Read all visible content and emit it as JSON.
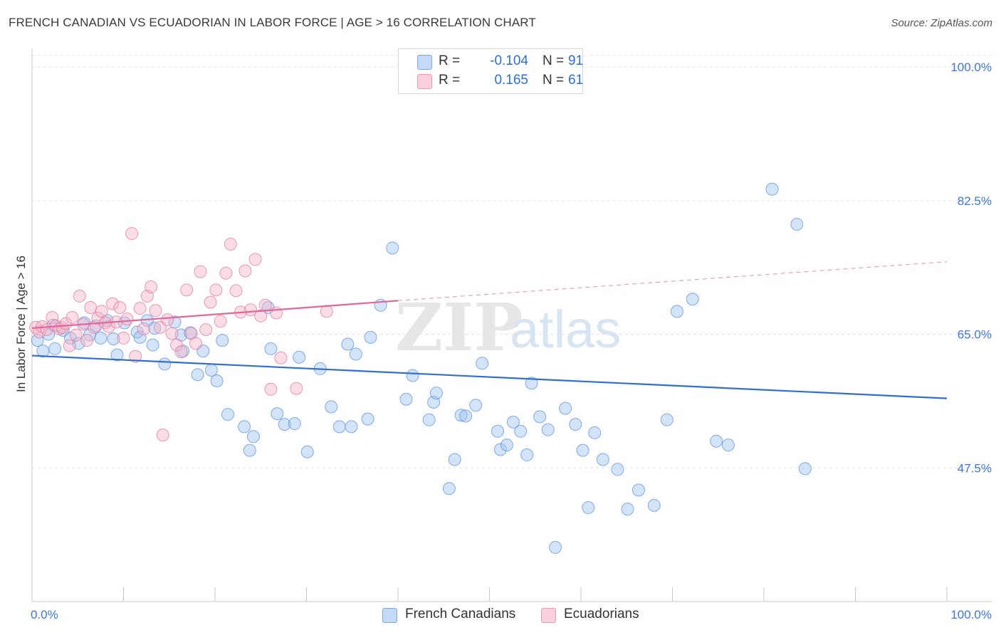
{
  "title": "FRENCH CANADIAN VS ECUADORIAN IN LABOR FORCE | AGE > 16 CORRELATION CHART",
  "source": "Source: ZipAtlas.com",
  "legend_top": {
    "rows": [
      {
        "r_label": "R =",
        "r_value": "-0.104",
        "n_label": "N =",
        "n_value": "91",
        "color": "#9ec1f0"
      },
      {
        "r_label": "R =",
        "r_value": "0.165",
        "n_label": "N =",
        "n_value": "61",
        "color": "#f5b3c8"
      }
    ]
  },
  "legend_bottom": {
    "series1": {
      "label": "French Canadians",
      "color": "#9ec1f0"
    },
    "series2": {
      "label": "Ecuadorians",
      "color": "#f5b3c8"
    }
  },
  "watermark": {
    "zip": "ZIP",
    "atlas": "atlas"
  },
  "chart_data": {
    "type": "scatter",
    "title": "FRENCH CANADIAN VS ECUADORIAN IN LABOR FORCE | AGE > 16 CORRELATION CHART",
    "xlabel": "",
    "ylabel": "In Labor Force | Age > 16",
    "xlim": [
      0,
      100
    ],
    "ylim": [
      30,
      101.5
    ],
    "x_tick_labels": [
      {
        "value": 0,
        "label": "0.0%"
      },
      {
        "value": 100,
        "label": "100.0%"
      }
    ],
    "y_ticks": [
      {
        "value": 47.5,
        "label": "47.5%"
      },
      {
        "value": 65.0,
        "label": "65.0%"
      },
      {
        "value": 82.5,
        "label": "82.5%"
      },
      {
        "value": 100.0,
        "label": "100.0%"
      }
    ],
    "grid": true,
    "series": [
      {
        "name": "French Canadians",
        "color": "#5b93e0",
        "fill": "#9ec1f0",
        "R": -0.104,
        "N": 91,
        "trend": {
          "x0": 0,
          "y0": 62.2,
          "x1": 100,
          "y1": 56.6,
          "dashed_from": null
        },
        "points": [
          [
            0.6,
            64.2
          ],
          [
            1.2,
            62.8
          ],
          [
            2.3,
            66.2
          ],
          [
            1.8,
            65.0
          ],
          [
            2.5,
            63.1
          ],
          [
            3.4,
            65.5
          ],
          [
            4.2,
            64.5
          ],
          [
            5.1,
            63.8
          ],
          [
            5.7,
            66.5
          ],
          [
            6.3,
            64.9
          ],
          [
            7.0,
            66.1
          ],
          [
            7.5,
            64.5
          ],
          [
            8.2,
            66.8
          ],
          [
            8.9,
            64.4
          ],
          [
            9.3,
            62.3
          ],
          [
            10.1,
            66.5
          ],
          [
            11.5,
            65.3
          ],
          [
            11.8,
            64.6
          ],
          [
            12.6,
            66.8
          ],
          [
            13.4,
            65.8
          ],
          [
            13.2,
            63.6
          ],
          [
            14.5,
            61.1
          ],
          [
            15.6,
            66.6
          ],
          [
            16.3,
            64.9
          ],
          [
            16.5,
            62.8
          ],
          [
            17.3,
            65.2
          ],
          [
            18.1,
            59.7
          ],
          [
            18.7,
            62.8
          ],
          [
            19.6,
            60.3
          ],
          [
            20.2,
            58.9
          ],
          [
            20.8,
            64.2
          ],
          [
            21.4,
            54.5
          ],
          [
            23.2,
            52.9
          ],
          [
            23.8,
            49.8
          ],
          [
            24.2,
            51.6
          ],
          [
            25.8,
            68.5
          ],
          [
            26.1,
            63.1
          ],
          [
            26.8,
            54.6
          ],
          [
            27.6,
            53.2
          ],
          [
            28.7,
            53.3
          ],
          [
            29.2,
            62.0
          ],
          [
            30.1,
            49.6
          ],
          [
            31.5,
            60.5
          ],
          [
            32.7,
            55.5
          ],
          [
            33.6,
            52.9
          ],
          [
            34.5,
            63.7
          ],
          [
            34.9,
            52.9
          ],
          [
            35.4,
            62.4
          ],
          [
            36.7,
            53.9
          ],
          [
            37.0,
            64.6
          ],
          [
            38.1,
            68.8
          ],
          [
            39.4,
            76.3
          ],
          [
            40.9,
            56.5
          ],
          [
            41.6,
            59.6
          ],
          [
            43.4,
            53.8
          ],
          [
            43.9,
            56.1
          ],
          [
            44.2,
            57.3
          ],
          [
            45.6,
            44.8
          ],
          [
            46.2,
            48.6
          ],
          [
            46.9,
            54.4
          ],
          [
            47.4,
            54.3
          ],
          [
            48.5,
            55.7
          ],
          [
            49.2,
            61.2
          ],
          [
            50.9,
            52.3
          ],
          [
            51.2,
            49.9
          ],
          [
            51.9,
            50.5
          ],
          [
            52.6,
            53.5
          ],
          [
            53.4,
            52.3
          ],
          [
            54.1,
            49.2
          ],
          [
            54.6,
            58.6
          ],
          [
            55.5,
            54.2
          ],
          [
            56.4,
            52.5
          ],
          [
            57.2,
            37.1
          ],
          [
            58.3,
            55.3
          ],
          [
            59.4,
            53.2
          ],
          [
            60.2,
            49.8
          ],
          [
            60.8,
            42.3
          ],
          [
            61.5,
            52.1
          ],
          [
            62.4,
            48.6
          ],
          [
            64.0,
            47.3
          ],
          [
            65.1,
            42.1
          ],
          [
            66.3,
            44.6
          ],
          [
            68.0,
            42.6
          ],
          [
            69.4,
            53.8
          ],
          [
            70.5,
            68.0
          ],
          [
            72.2,
            69.6
          ],
          [
            74.8,
            51.0
          ],
          [
            76.1,
            50.5
          ],
          [
            80.9,
            84.0
          ],
          [
            83.6,
            79.4
          ],
          [
            84.5,
            47.4
          ]
        ]
      },
      {
        "name": "Ecuadorians",
        "color": "#e27a9c",
        "fill": "#f5b3c8",
        "R": 0.165,
        "N": 61,
        "trend": {
          "x0": 0,
          "y0": 65.8,
          "x1": 40,
          "y1": 69.4,
          "dashed_to_x": 100,
          "dashed_to_y": 74.5
        },
        "points": [
          [
            0.4,
            65.9
          ],
          [
            0.8,
            65.3
          ],
          [
            1.1,
            66.0
          ],
          [
            1.6,
            65.6
          ],
          [
            2.2,
            67.2
          ],
          [
            2.6,
            66.1
          ],
          [
            3.0,
            65.7
          ],
          [
            3.3,
            65.9
          ],
          [
            3.7,
            66.4
          ],
          [
            4.1,
            63.5
          ],
          [
            4.4,
            67.2
          ],
          [
            4.8,
            64.9
          ],
          [
            5.2,
            70.0
          ],
          [
            5.6,
            66.3
          ],
          [
            6.0,
            64.2
          ],
          [
            6.4,
            68.5
          ],
          [
            6.8,
            65.9
          ],
          [
            7.2,
            67.1
          ],
          [
            7.6,
            68.0
          ],
          [
            8.0,
            66.5
          ],
          [
            8.4,
            66.0
          ],
          [
            8.8,
            69.0
          ],
          [
            9.2,
            66.6
          ],
          [
            9.6,
            68.5
          ],
          [
            10.0,
            64.5
          ],
          [
            10.4,
            67.0
          ],
          [
            10.9,
            78.2
          ],
          [
            11.3,
            62.1
          ],
          [
            11.8,
            68.4
          ],
          [
            12.2,
            65.7
          ],
          [
            12.6,
            70.0
          ],
          [
            13.0,
            71.2
          ],
          [
            13.5,
            68.1
          ],
          [
            14.0,
            65.9
          ],
          [
            14.3,
            51.8
          ],
          [
            14.8,
            66.9
          ],
          [
            15.3,
            65.1
          ],
          [
            15.8,
            63.6
          ],
          [
            16.3,
            62.7
          ],
          [
            16.9,
            70.8
          ],
          [
            17.4,
            65.1
          ],
          [
            17.9,
            63.8
          ],
          [
            18.4,
            73.2
          ],
          [
            19.0,
            65.6
          ],
          [
            19.5,
            69.2
          ],
          [
            20.1,
            70.8
          ],
          [
            20.6,
            66.7
          ],
          [
            21.2,
            73.0
          ],
          [
            21.7,
            76.8
          ],
          [
            22.3,
            70.7
          ],
          [
            22.8,
            67.9
          ],
          [
            23.3,
            73.3
          ],
          [
            23.9,
            68.2
          ],
          [
            24.4,
            74.8
          ],
          [
            25.0,
            67.4
          ],
          [
            25.5,
            68.8
          ],
          [
            26.1,
            57.8
          ],
          [
            26.7,
            67.8
          ],
          [
            27.2,
            61.9
          ],
          [
            28.9,
            57.9
          ],
          [
            32.2,
            68.0
          ]
        ]
      }
    ]
  }
}
